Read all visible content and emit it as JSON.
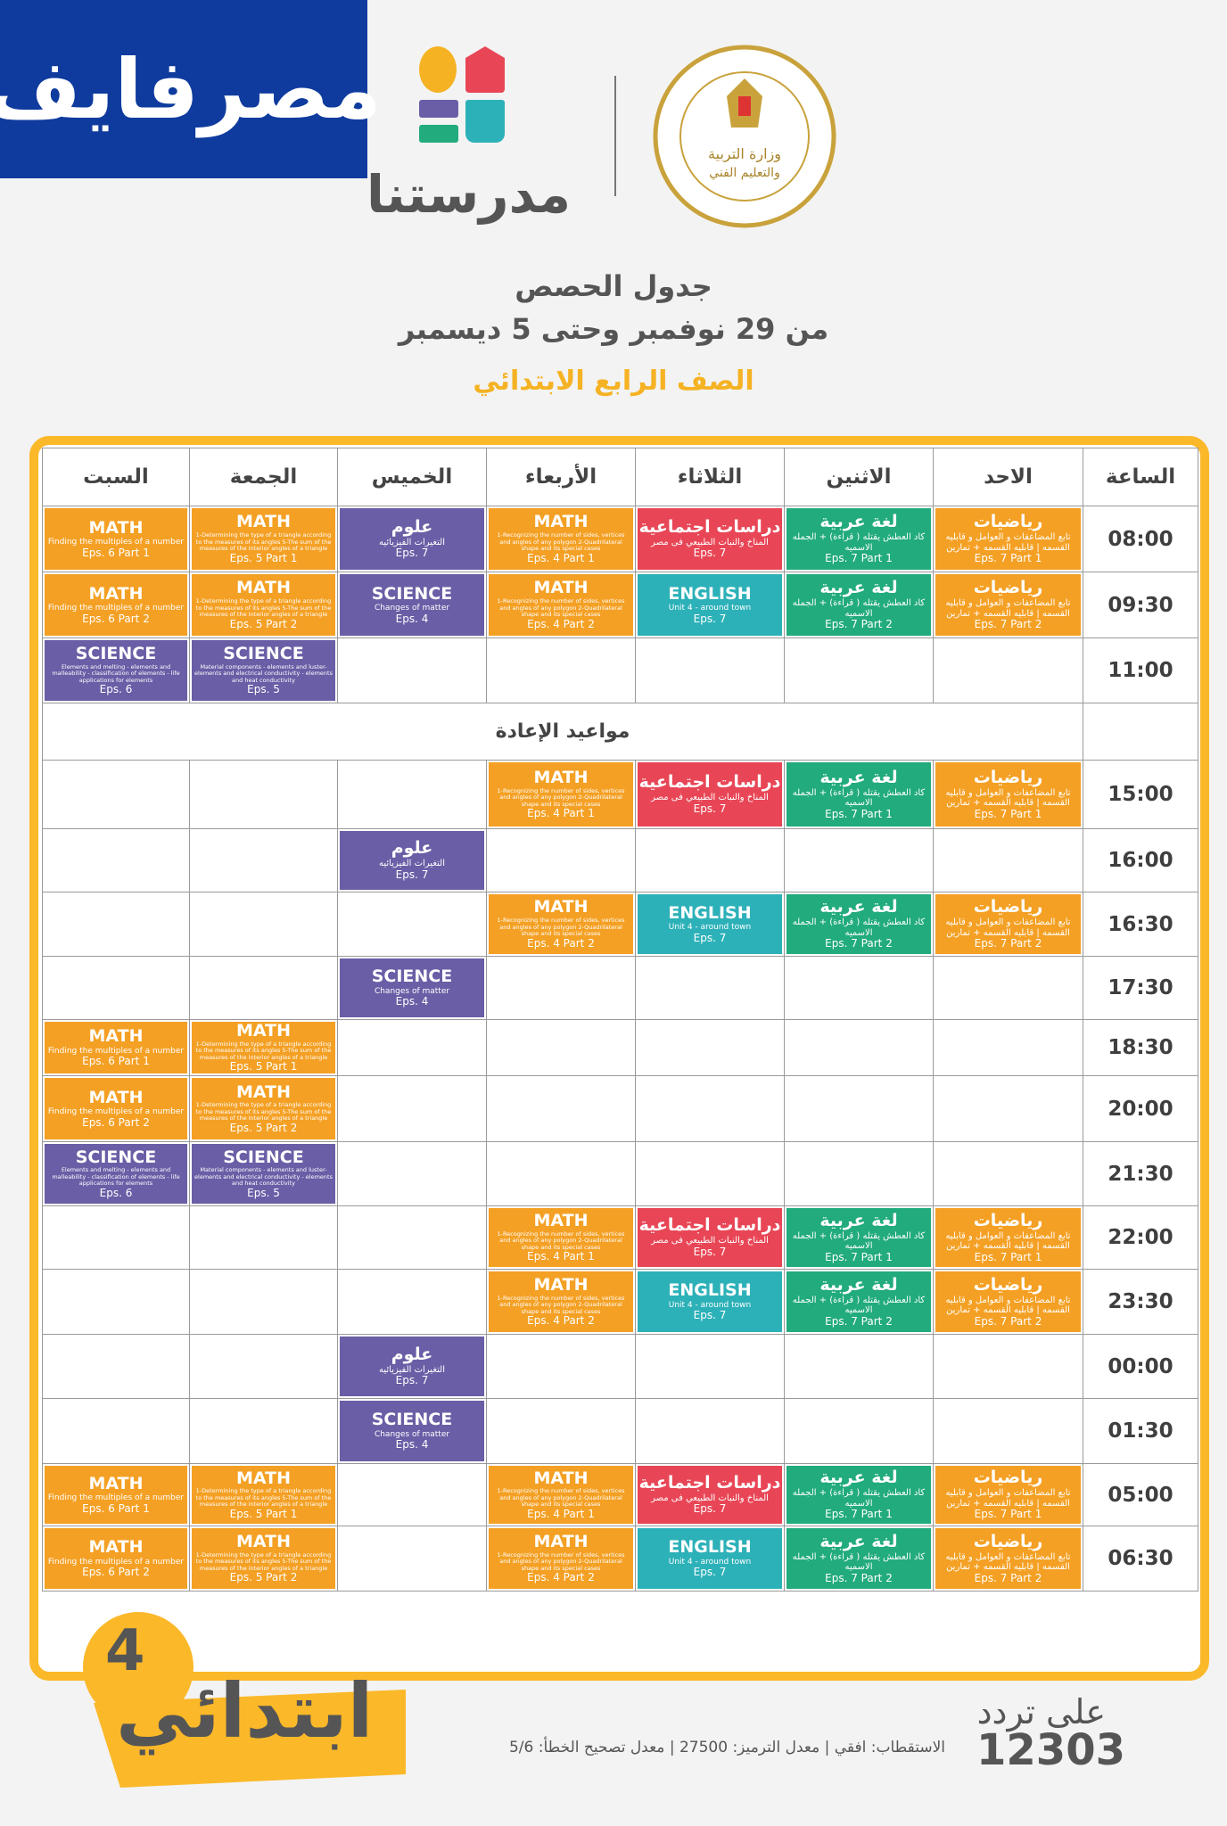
{
  "header": {
    "masrawy_logo": "مصرفايف",
    "madrasa_logo": "مدرستنا",
    "ministry_seal": "MINISTRY OF EDUCATION AND TECHNICAL EDUCATION",
    "title": "جدول الحصص",
    "date_range": "من 29 نوفمبر وحتى 5 ديسمبر",
    "grade": "الصف الرابع الابتدائي"
  },
  "colors": {
    "orange": "#f4a024",
    "purple": "#6a5ea6",
    "red": "#e84656",
    "teal": "#2db1b8",
    "green": "#22ab7c",
    "frame": "#fbb829",
    "blue": "#0f3b9e"
  },
  "columns": [
    "السبت",
    "الجمعة",
    "الخميس",
    "الأربعاء",
    "الثلاثاء",
    "الاثنين",
    "الاحد",
    "الساعة"
  ],
  "rerun_label": "مواعيد الإعادة",
  "lessons": {
    "mathA1": {
      "title": "MATH",
      "desc": "Finding the multiples of a number",
      "eps": "Eps. 6 Part 1",
      "color": "orange"
    },
    "mathA2": {
      "title": "MATH",
      "desc": "Finding the multiples of a number",
      "eps": "Eps. 6 Part 2",
      "color": "orange"
    },
    "mathB1": {
      "title": "MATH",
      "desc": "1-Determining the type of a triangle according to the measures of its angles 5-The sum of the measures of the interior angles of a triangle",
      "eps": "Eps. 5 Part 1",
      "color": "orange",
      "small": true
    },
    "mathB2": {
      "title": "MATH",
      "desc": "1-Determining the type of a triangle according to the measures of its angles 5-The sum of the measures of the interior angles of a triangle",
      "eps": "Eps. 5 Part 2",
      "color": "orange",
      "small": true
    },
    "sciA": {
      "title": "SCIENCE",
      "desc": "Elements and melting - elements and malleability - classification of elements - life applications for elements",
      "eps": "Eps. 6",
      "color": "purple",
      "small": true
    },
    "sciB": {
      "title": "SCIENCE",
      "desc": "Material components - elements and luster-elements and electrical conductivity - elements and heat conductivity",
      "eps": "Eps. 5",
      "color": "purple",
      "small": true
    },
    "olom": {
      "title": "علوم",
      "desc": "التغيرات الفيزيائيه",
      "eps": "Eps. 7",
      "color": "purple",
      "ar": true
    },
    "sciC": {
      "title": "SCIENCE",
      "desc": "Changes of matter",
      "eps": "Eps. 4",
      "color": "purple"
    },
    "mathW1": {
      "title": "MATH",
      "desc": "1-Recognizing the number of sides, vertices and angles of any polygon 2-Quadrilateral shape and its special cases",
      "eps": "Eps. 4 Part 1",
      "color": "orange",
      "small": true
    },
    "mathW2": {
      "title": "MATH",
      "desc": "1-Recognizing the number of sides, vertices and angles of any polygon 2-Quadrilateral shape and its special cases",
      "eps": "Eps. 4 Part 2",
      "color": "orange",
      "small": true
    },
    "social": {
      "title": "دراسات اجتماعية",
      "desc": "المناخ والنبات الطبيعي فى مصر",
      "eps": "Eps. 7",
      "color": "red",
      "ar": true
    },
    "english": {
      "title": "ENGLISH",
      "desc": "Unit 4 - around town",
      "eps": "Eps. 7",
      "color": "teal"
    },
    "arabic1": {
      "title": "لغة عربية",
      "desc": "كاد العطش يقتله ( قراءة) + الجمله الاسميه",
      "eps": "Eps. 7 Part 1",
      "color": "green",
      "ar": true
    },
    "arabic2": {
      "title": "لغة عربية",
      "desc": "كاد العطش يقتله ( قراءة) + الجمله الاسميه",
      "eps": "Eps. 7 Part 2",
      "color": "green",
      "ar": true
    },
    "riyad1": {
      "title": "رياضيات",
      "desc": "تابع المضاعفات و العوامل و قابليه القسمه | قابليه القسمه + تمارين",
      "eps": "Eps. 7 Part 1",
      "color": "orange",
      "ar": true
    },
    "riyad2": {
      "title": "رياضيات",
      "desc": "تابع المضاعفات و العوامل و قابليه القسمه | قابليه القسمه + تمارين",
      "eps": "Eps. 7 Part 2",
      "color": "orange",
      "ar": true
    }
  },
  "schedule": [
    {
      "time": "08:00",
      "cells": [
        "mathA1",
        "mathB1",
        "olom",
        "mathW1",
        "social",
        "arabic1",
        "riyad1"
      ]
    },
    {
      "time": "09:30",
      "cells": [
        "mathA2",
        "mathB2",
        "sciC",
        "mathW2",
        "english",
        "arabic2",
        "riyad2"
      ]
    },
    {
      "time": "11:00",
      "cells": [
        "sciA",
        "sciB",
        "",
        "",
        "",
        "",
        ""
      ]
    },
    {
      "break": true
    },
    {
      "time": "15:00",
      "cells": [
        "",
        "",
        "",
        "mathW1",
        "social",
        "arabic1",
        "riyad1"
      ]
    },
    {
      "time": "16:00",
      "cells": [
        "",
        "",
        "olom",
        "",
        "",
        "",
        ""
      ]
    },
    {
      "time": "16:30",
      "cells": [
        "",
        "",
        "",
        "mathW2",
        "english",
        "arabic2",
        "riyad2"
      ]
    },
    {
      "time": "17:30",
      "cells": [
        "",
        "",
        "sciC",
        "",
        "",
        "",
        ""
      ]
    },
    {
      "time": "18:30",
      "cells": [
        "mathA1",
        "mathB1",
        "",
        "",
        "",
        "",
        ""
      ]
    },
    {
      "time": "20:00",
      "cells": [
        "mathA2",
        "mathB2",
        "",
        "",
        "",
        "",
        ""
      ]
    },
    {
      "time": "21:30",
      "cells": [
        "sciA",
        "sciB",
        "",
        "",
        "",
        "",
        ""
      ]
    },
    {
      "time": "22:00",
      "cells": [
        "",
        "",
        "",
        "mathW1",
        "social",
        "arabic1",
        "riyad1"
      ]
    },
    {
      "time": "23:30",
      "cells": [
        "",
        "",
        "",
        "mathW2",
        "english",
        "arabic2",
        "riyad2"
      ]
    },
    {
      "time": "00:00",
      "cells": [
        "",
        "",
        "olom",
        "",
        "",
        "",
        ""
      ]
    },
    {
      "time": "01:30",
      "cells": [
        "",
        "",
        "sciC",
        "",
        "",
        "",
        ""
      ]
    },
    {
      "time": "05:00",
      "cells": [
        "mathA1",
        "mathB1",
        "",
        "mathW1",
        "social",
        "arabic1",
        "riyad1"
      ]
    },
    {
      "time": "06:30",
      "cells": [
        "mathA2",
        "mathB2",
        "",
        "mathW2",
        "english",
        "arabic2",
        "riyad2"
      ]
    }
  ],
  "badge": {
    "word": "ابتدائي",
    "number": "4"
  },
  "footer": {
    "on_freq": "على تردد",
    "frequency": "12303",
    "info": "الاستقطاب: افقي | معدل الترميز: 27500 | معدل تصحيح الخطأ: 5/6"
  }
}
